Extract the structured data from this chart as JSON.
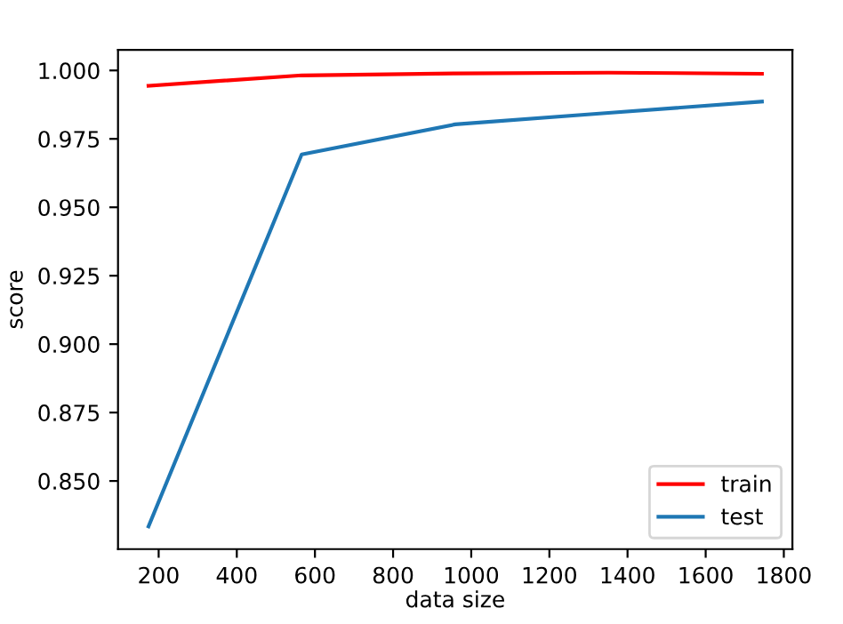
{
  "chart_data": {
    "type": "line",
    "xlabel": "data size",
    "ylabel": "score",
    "x": [
      174,
      566,
      959,
      1351,
      1744
    ],
    "series": [
      {
        "name": "train",
        "color": "#ff0000",
        "values": [
          0.9944,
          0.9982,
          0.9989,
          0.9992,
          0.9988
        ]
      },
      {
        "name": "test",
        "color": "#1f77b4",
        "values": [
          0.8334,
          0.9693,
          0.9803,
          0.9845,
          0.9886
        ]
      }
    ],
    "xlim": [
      96,
      1822
    ],
    "ylim": [
      0.8251,
      1.0075
    ],
    "xticks": [
      200,
      400,
      600,
      800,
      1000,
      1200,
      1400,
      1600,
      1800
    ],
    "yticks": [
      {
        "value": 0.85,
        "label": "0.850"
      },
      {
        "value": 0.875,
        "label": "0.875"
      },
      {
        "value": 0.9,
        "label": "0.900"
      },
      {
        "value": 0.925,
        "label": "0.925"
      },
      {
        "value": 0.95,
        "label": "0.950"
      },
      {
        "value": 0.975,
        "label": "0.975"
      },
      {
        "value": 1.0,
        "label": "1.000"
      }
    ],
    "legend": "lower right",
    "grid": false
  }
}
